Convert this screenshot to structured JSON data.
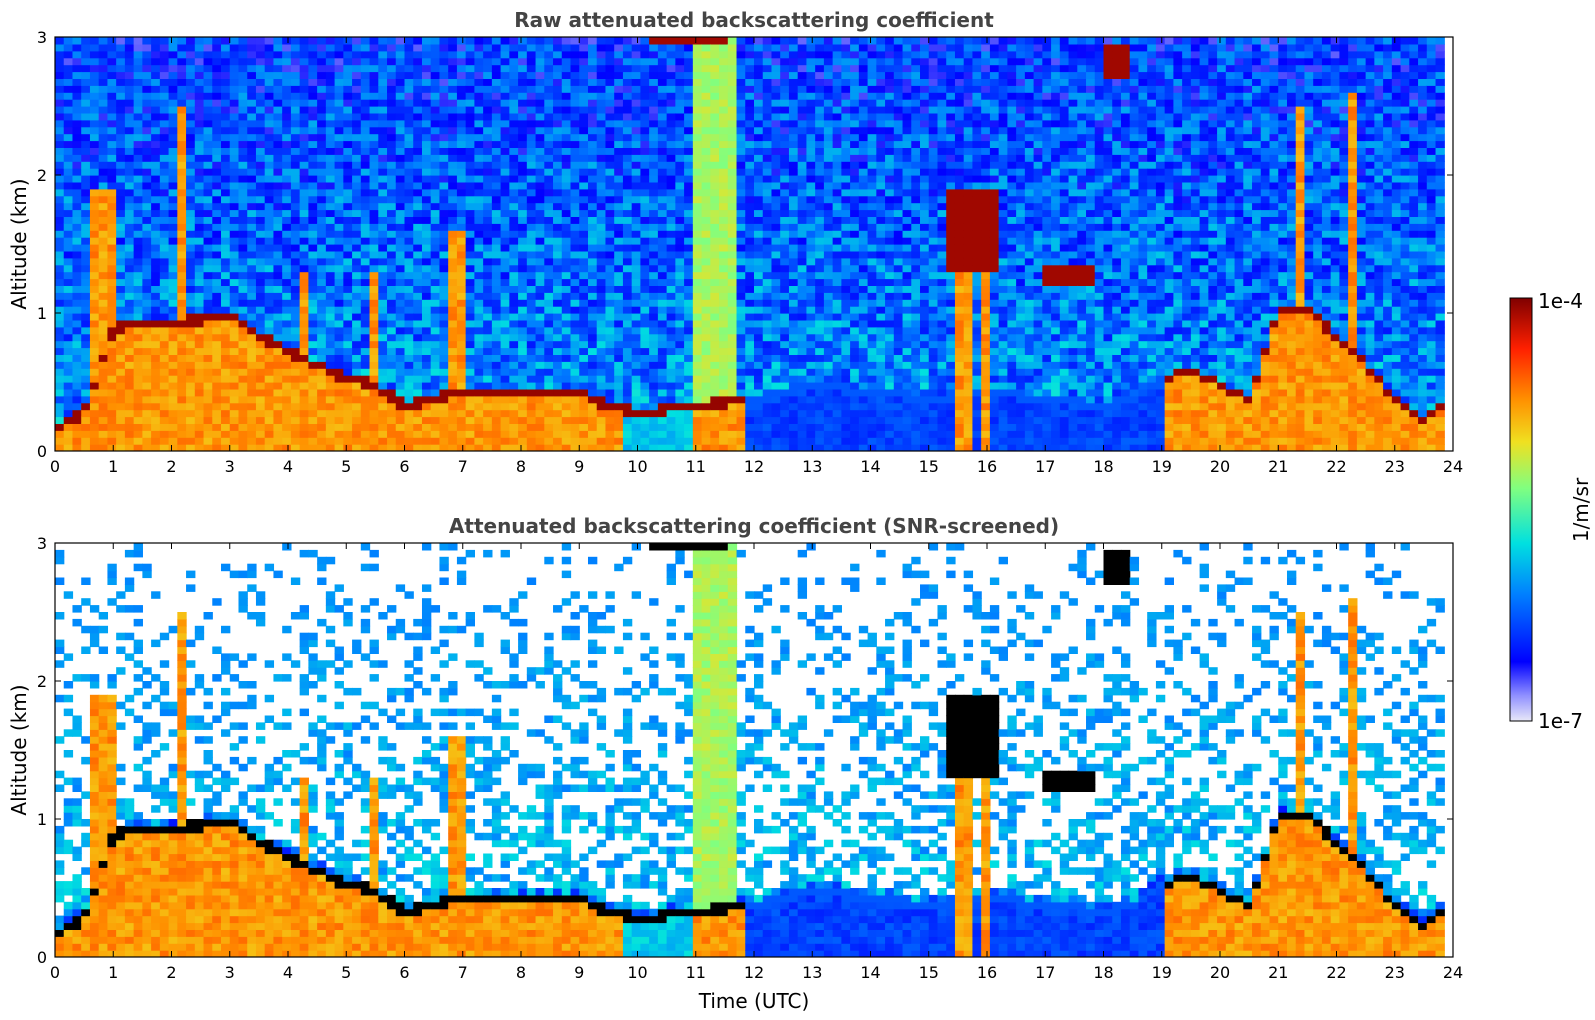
{
  "chart_data": [
    {
      "type": "heatmap",
      "title": "Raw attenuated backscattering coefficient",
      "xlabel": "",
      "ylabel": "Altitude (km)",
      "xlim": [
        0,
        24
      ],
      "ylim": [
        0,
        3
      ],
      "x_ticks": [
        "0",
        "1",
        "2",
        "3",
        "4",
        "5",
        "6",
        "7",
        "8",
        "9",
        "10",
        "11",
        "12",
        "13",
        "14",
        "15",
        "16",
        "17",
        "18",
        "19",
        "20",
        "21",
        "22",
        "23",
        "24"
      ],
      "y_ticks": [
        "0",
        "1",
        "2",
        "3"
      ],
      "features": {
        "boundary_layer_top_km": [
          {
            "t": 0.0,
            "z": 0.15
          },
          {
            "t": 0.5,
            "z": 0.25
          },
          {
            "t": 1.0,
            "z": 0.85
          },
          {
            "t": 1.4,
            "z": 0.9
          },
          {
            "t": 2.0,
            "z": 0.9
          },
          {
            "t": 3.0,
            "z": 0.95
          },
          {
            "t": 3.5,
            "z": 0.8
          },
          {
            "t": 4.5,
            "z": 0.6
          },
          {
            "t": 5.0,
            "z": 0.5
          },
          {
            "t": 5.5,
            "z": 0.45
          },
          {
            "t": 6.0,
            "z": 0.3
          },
          {
            "t": 7.0,
            "z": 0.4
          },
          {
            "t": 8.0,
            "z": 0.4
          },
          {
            "t": 9.0,
            "z": 0.4
          },
          {
            "t": 9.5,
            "z": 0.3
          },
          {
            "t": 10.0,
            "z": 0.25
          },
          {
            "t": 11.0,
            "z": 0.3
          },
          {
            "t": 12.0,
            "z": 0.35
          },
          {
            "t": 13.0,
            "z": 0.45
          },
          {
            "t": 14.0,
            "z": 0.4
          },
          {
            "t": 15.0,
            "z": 0.35
          },
          {
            "t": 16.0,
            "z": 0.4
          },
          {
            "t": 17.0,
            "z": 0.35
          },
          {
            "t": 18.0,
            "z": 0.3
          },
          {
            "t": 18.5,
            "z": 0.35
          },
          {
            "t": 19.0,
            "z": 0.5
          },
          {
            "t": 19.5,
            "z": 0.55
          },
          {
            "t": 20.0,
            "z": 0.45
          },
          {
            "t": 20.5,
            "z": 0.35
          },
          {
            "t": 21.0,
            "z": 1.0
          },
          {
            "t": 21.5,
            "z": 1.0
          },
          {
            "t": 22.0,
            "z": 0.8
          },
          {
            "t": 22.5,
            "z": 0.6
          },
          {
            "t": 23.0,
            "z": 0.35
          },
          {
            "t": 23.5,
            "z": 0.2
          },
          {
            "t": 23.75,
            "z": 0.3
          }
        ]
      }
    },
    {
      "type": "heatmap",
      "title": "Attenuated backscattering coefficient (SNR-screened)",
      "xlabel": "Time (UTC)",
      "ylabel": "Altitude (km)",
      "xlim": [
        0,
        24
      ],
      "ylim": [
        0,
        3
      ],
      "x_ticks": [
        "0",
        "1",
        "2",
        "3",
        "4",
        "5",
        "6",
        "7",
        "8",
        "9",
        "10",
        "11",
        "12",
        "13",
        "14",
        "15",
        "16",
        "17",
        "18",
        "19",
        "20",
        "21",
        "22",
        "23",
        "24"
      ],
      "y_ticks": [
        "0",
        "1",
        "2",
        "3"
      ]
    }
  ],
  "colorbar": {
    "max_label": "1e-4",
    "min_label": "1e-7",
    "unit_label": "1/m/sr",
    "scale": "log",
    "range": [
      1e-07,
      0.0001
    ],
    "colormap": [
      "#e8e8f8",
      "#0000ff",
      "#0080ff",
      "#00e0e0",
      "#80ff80",
      "#e0e020",
      "#ff8000",
      "#ff2000",
      "#800000"
    ]
  },
  "colors": {
    "title": "#444444",
    "missing": "#ffffff",
    "screened_peak": "#000000"
  }
}
